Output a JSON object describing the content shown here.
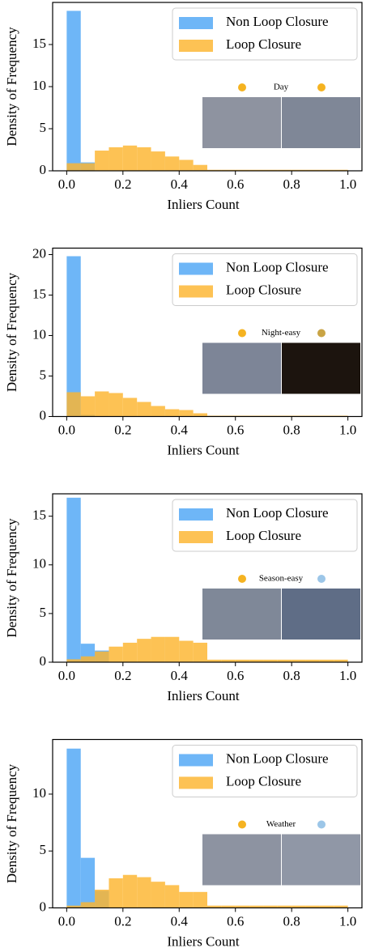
{
  "chart_data": [
    {
      "type": "histogram",
      "annotation": "Day",
      "xlabel": "Inliers Count",
      "ylabel": "Density of Frequency",
      "bins": [
        0,
        0.05,
        0.1,
        0.15,
        0.2,
        0.25,
        0.3,
        0.35,
        0.4,
        0.45,
        0.5,
        0.55,
        0.6,
        0.65,
        0.7,
        0.75,
        0.8,
        0.85,
        0.9,
        0.95,
        1.0
      ],
      "series": [
        {
          "name": "Non Loop Closure",
          "color": "#4ea6f5",
          "values": [
            19.0,
            1.0,
            0,
            0,
            0,
            0,
            0,
            0,
            0,
            0,
            0,
            0,
            0,
            0,
            0,
            0,
            0,
            0,
            0,
            0
          ]
        },
        {
          "name": "Loop Closure",
          "color": "#fdb52e",
          "values": [
            0.9,
            0.9,
            2.4,
            2.8,
            3.0,
            2.8,
            2.3,
            1.7,
            1.3,
            0.7,
            0.12,
            0.12,
            0.12,
            0.12,
            0.12,
            0.12,
            0.12,
            0.12,
            0.12,
            0.12
          ]
        }
      ],
      "xlim": [
        -0.05,
        1.05
      ],
      "ylim": [
        0,
        20
      ],
      "xticks": [
        {
          "value": 0,
          "label": "0.0"
        },
        0.2,
        0.4,
        0.6,
        0.8,
        {
          "value": 1,
          "label": "1.0"
        }
      ],
      "yticks": [
        0,
        5,
        10,
        15
      ],
      "legend": "upper right",
      "grid": false
    },
    {
      "type": "histogram",
      "annotation": "Night-easy",
      "xlabel": "Inliers Count",
      "ylabel": "Density of Frequency",
      "bins": [
        0,
        0.05,
        0.1,
        0.15,
        0.2,
        0.25,
        0.3,
        0.35,
        0.4,
        0.45,
        0.5,
        0.55,
        0.6,
        0.65,
        0.7,
        0.75,
        0.8,
        0.85,
        0.9,
        0.95,
        1.0
      ],
      "series": [
        {
          "name": "Non Loop Closure",
          "color": "#4ea6f5",
          "values": [
            19.8,
            0.2,
            0,
            0,
            0,
            0,
            0,
            0,
            0,
            0,
            0,
            0,
            0,
            0,
            0,
            0,
            0,
            0,
            0,
            0
          ]
        },
        {
          "name": "Loop Closure",
          "color": "#fdb52e",
          "values": [
            3.0,
            2.5,
            3.1,
            2.9,
            2.3,
            1.8,
            1.3,
            0.9,
            0.8,
            0.4,
            0.1,
            0.1,
            0.1,
            0.1,
            0.1,
            0.1,
            0.1,
            0.1,
            0.1,
            0.1
          ]
        }
      ],
      "xlim": [
        -0.05,
        1.05
      ],
      "ylim": [
        0,
        20.8
      ],
      "xticks": [
        {
          "value": 0,
          "label": "0.0"
        },
        0.2,
        0.4,
        0.6,
        0.8,
        {
          "value": 1,
          "label": "1.0"
        }
      ],
      "yticks": [
        0,
        5,
        10,
        15,
        20
      ],
      "legend": "upper right",
      "grid": false
    },
    {
      "type": "histogram",
      "annotation": "Season-easy",
      "xlabel": "Inliers Count",
      "ylabel": "Density of Frequency",
      "bins": [
        0,
        0.05,
        0.1,
        0.15,
        0.2,
        0.25,
        0.3,
        0.35,
        0.4,
        0.45,
        0.5,
        0.55,
        0.6,
        0.65,
        0.7,
        0.75,
        0.8,
        0.85,
        0.9,
        0.95,
        1.0
      ],
      "series": [
        {
          "name": "Non Loop Closure",
          "color": "#4ea6f5",
          "values": [
            16.9,
            1.9,
            1.2,
            0,
            0,
            0,
            0,
            0,
            0,
            0,
            0,
            0,
            0,
            0,
            0,
            0,
            0,
            0,
            0,
            0
          ]
        },
        {
          "name": "Loop Closure",
          "color": "#fdb52e",
          "values": [
            0.3,
            0.6,
            1.1,
            1.6,
            2.0,
            2.4,
            2.6,
            2.6,
            2.2,
            2.0,
            0.26,
            0.26,
            0.26,
            0.26,
            0.26,
            0.26,
            0.26,
            0.26,
            0.26,
            0.26
          ]
        }
      ],
      "xlim": [
        -0.05,
        1.05
      ],
      "ylim": [
        0,
        17.3
      ],
      "xticks": [
        {
          "value": 0,
          "label": "0.0"
        },
        0.2,
        0.4,
        0.6,
        0.8,
        {
          "value": 1,
          "label": "1.0"
        }
      ],
      "yticks": [
        0,
        5,
        10,
        15
      ],
      "legend": "upper right",
      "grid": false
    },
    {
      "type": "histogram",
      "annotation": "Weather",
      "xlabel": "Inliers Count",
      "ylabel": "Density of Frequency",
      "bins": [
        0,
        0.05,
        0.1,
        0.15,
        0.2,
        0.25,
        0.3,
        0.35,
        0.4,
        0.45,
        0.5,
        0.55,
        0.6,
        0.65,
        0.7,
        0.75,
        0.8,
        0.85,
        0.9,
        0.95,
        1.0
      ],
      "series": [
        {
          "name": "Non Loop Closure",
          "color": "#4ea6f5",
          "values": [
            14.0,
            4.4,
            1.5,
            0,
            0,
            0,
            0,
            0,
            0,
            0,
            0,
            0,
            0,
            0,
            0,
            0,
            0,
            0,
            0,
            0
          ]
        },
        {
          "name": "Loop Closure",
          "color": "#fdb52e",
          "values": [
            0.2,
            0.5,
            1.6,
            2.6,
            2.9,
            2.7,
            2.3,
            2.0,
            1.4,
            1.4,
            0.2,
            0.2,
            0.2,
            0.2,
            0.2,
            0.2,
            0.2,
            0.2,
            0.2,
            0.2
          ]
        }
      ],
      "xlim": [
        -0.05,
        1.05
      ],
      "ylim": [
        0,
        14.8
      ],
      "xticks": [
        {
          "value": 0,
          "label": "0.0"
        },
        0.2,
        0.4,
        0.6,
        0.8,
        {
          "value": 1,
          "label": "1.0"
        }
      ],
      "yticks": [
        0,
        5,
        10
      ],
      "legend": "upper right",
      "grid": false
    }
  ]
}
